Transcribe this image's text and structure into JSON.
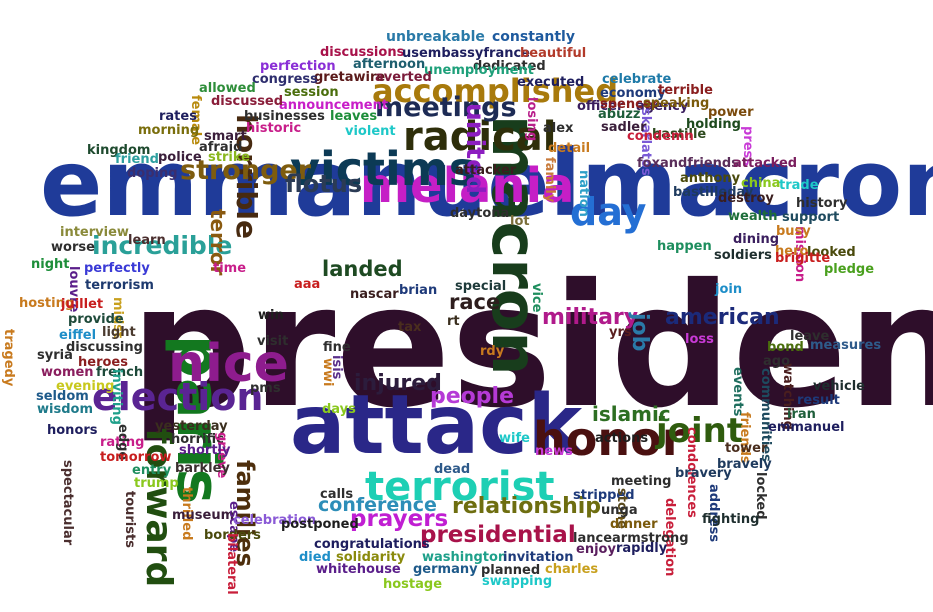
{
  "words": [
    {
      "t": "president",
      "c": "#2e0e2a"
    },
    {
      "t": "emmanuelmacron",
      "c": "#1f3b99"
    },
    {
      "t": "attack",
      "c": "#2a2788"
    },
    {
      "t": "macron",
      "c": "#183d1c"
    },
    {
      "t": "melania",
      "c": "#c51fc6"
    },
    {
      "t": "paris",
      "c": "#13781f"
    },
    {
      "t": "nice",
      "c": "#8e1c8e"
    },
    {
      "t": "victims",
      "c": "#0c3a55"
    },
    {
      "t": "day",
      "c": "#246fd4"
    },
    {
      "t": "honor",
      "c": "#4a1010"
    },
    {
      "t": "terrorist",
      "c": "#1dcfb4"
    },
    {
      "t": "radical",
      "c": "#2e2e0a"
    },
    {
      "t": "election",
      "c": "#5a2493"
    },
    {
      "t": "accomplished",
      "c": "#a87a0c"
    },
    {
      "t": "forward",
      "c": "#214e10"
    },
    {
      "t": "joint",
      "c": "#2f5c0e"
    },
    {
      "t": "meetings",
      "c": "#1d2b55"
    },
    {
      "t": "horrible",
      "c": "#472a10"
    },
    {
      "t": "united",
      "c": "#8c1ec0"
    },
    {
      "t": "stronger",
      "c": "#7e5c0e"
    },
    {
      "t": "flotus",
      "c": "#2b3b55"
    },
    {
      "t": "presidential",
      "c": "#a8124a"
    },
    {
      "t": "families",
      "c": "#4d2e0c"
    },
    {
      "t": "relationship",
      "c": "#6e6e10"
    },
    {
      "t": "people",
      "c": "#b53ad6"
    },
    {
      "t": "incredible",
      "c": "#2aa098"
    },
    {
      "t": "prayers",
      "c": "#c01ed2"
    },
    {
      "t": "injured",
      "c": "#2c1c3c"
    },
    {
      "t": "american",
      "c": "#1b2a7a"
    },
    {
      "t": "islamic",
      "c": "#2d6e22"
    },
    {
      "t": "military",
      "c": "#b01a8b"
    },
    {
      "t": "landed",
      "c": "#1e4a22"
    },
    {
      "t": "conference",
      "c": "#2d8eb8"
    },
    {
      "t": "terror",
      "c": "#8a5a10"
    },
    {
      "t": "race",
      "c": "#2e1e1e"
    },
    {
      "t": "job",
      "c": "#2a7aa8"
    },
    {
      "t": "unbreakable",
      "c": "#2a7aa8"
    },
    {
      "t": "constantly",
      "c": "#1e5a9e"
    },
    {
      "t": "discussions",
      "c": "#a8124a"
    },
    {
      "t": "usembassyfrance",
      "c": "#1e1e5e"
    },
    {
      "t": "beautiful",
      "c": "#b23a2a"
    },
    {
      "t": "perfection",
      "c": "#8a2ed6"
    },
    {
      "t": "afternoon",
      "c": "#1e5e6e"
    },
    {
      "t": "dedicated",
      "c": "#2e2e2e"
    },
    {
      "t": "gretawire",
      "c": "#5a1a1a"
    },
    {
      "t": "unemployment",
      "c": "#1ea07a"
    },
    {
      "t": "congress",
      "c": "#2e2e6e"
    },
    {
      "t": "averted",
      "c": "#7a1a3a"
    },
    {
      "t": "executed",
      "c": "#1e1e5e"
    },
    {
      "t": "celebrate",
      "c": "#1e7aa8"
    },
    {
      "t": "allowed",
      "c": "#2e8e3a"
    },
    {
      "t": "session",
      "c": "#4a6e0c"
    },
    {
      "t": "economy",
      "c": "#1e3a7a"
    },
    {
      "t": "terrible",
      "c": "#8a1e1e"
    },
    {
      "t": "announcement",
      "c": "#c81ec8"
    },
    {
      "t": "officer",
      "c": "#3a1e5e"
    },
    {
      "t": "agency",
      "c": "#3a1e5e"
    },
    {
      "t": "power",
      "c": "#7a4a0c"
    },
    {
      "t": "female",
      "c": "#b88a0c"
    },
    {
      "t": "discussed",
      "c": "#8a1e3a"
    },
    {
      "t": "losing",
      "c": "#b81e8a"
    },
    {
      "t": "spencer",
      "c": "#8a1e1e"
    },
    {
      "t": "speaking",
      "c": "#7a5a0c"
    },
    {
      "t": "rates",
      "c": "#1e1e5e"
    },
    {
      "t": "leaves",
      "c": "#1e8e3a"
    },
    {
      "t": "abuzz",
      "c": "#1e5e3a"
    },
    {
      "t": "bastille",
      "c": "#2e4a1e"
    },
    {
      "t": "businesses",
      "c": "#2e2e2e"
    },
    {
      "t": "skarlatos",
      "c": "#7a5ad6"
    },
    {
      "t": "morning",
      "c": "#7a6e0c"
    },
    {
      "t": "historic",
      "c": "#c81e8a"
    },
    {
      "t": "violent",
      "c": "#1ec8c8"
    },
    {
      "t": "alex",
      "c": "#2e2e2e"
    },
    {
      "t": "sadler",
      "c": "#3a1e3a"
    },
    {
      "t": "holding",
      "c": "#1e4a1e"
    },
    {
      "t": "smart",
      "c": "#3a1e3a"
    },
    {
      "t": "condemn",
      "c": "#c81e3a"
    },
    {
      "t": "press",
      "c": "#c83ad6"
    },
    {
      "t": "kingdom",
      "c": "#1e4a2e"
    },
    {
      "t": "afraid",
      "c": "#2e2e2e"
    },
    {
      "t": "foxandfriends",
      "c": "#5a2e5a"
    },
    {
      "t": "friend",
      "c": "#2ea0a0"
    },
    {
      "t": "police",
      "c": "#3a1e3a"
    },
    {
      "t": "strike",
      "c": "#8ab81e"
    },
    {
      "t": "detail",
      "c": "#c87a1e"
    },
    {
      "t": "attacked",
      "c": "#7a1e5e"
    },
    {
      "t": "anthony",
      "c": "#4a4a0c"
    },
    {
      "t": "doping",
      "c": "#3a2e6e"
    },
    {
      "t": "attacker",
      "c": "#3a1e1e"
    },
    {
      "t": "family",
      "c": "#c87a3a"
    },
    {
      "t": "nation",
      "c": "#2ea0c8"
    },
    {
      "t": "bastilleday",
      "c": "#1e3a5e"
    },
    {
      "t": "china",
      "c": "#8ac81e"
    },
    {
      "t": "trade",
      "c": "#1ec8c8"
    },
    {
      "t": "destroy",
      "c": "#3a1e1e"
    },
    {
      "t": "history",
      "c": "#2e2e2e"
    },
    {
      "t": "wealth",
      "c": "#1e6e3a"
    },
    {
      "t": "support",
      "c": "#1e4a5e"
    },
    {
      "t": "mission",
      "c": "#c81e8a"
    },
    {
      "t": "busy",
      "c": "#c87a1e"
    },
    {
      "t": "daytona",
      "c": "#2e2e2e"
    },
    {
      "t": "interview",
      "c": "#8a8a3a"
    },
    {
      "t": "lot",
      "c": "#7a6e3a"
    },
    {
      "t": "happen",
      "c": "#1e8e5e"
    },
    {
      "t": "dining",
      "c": "#3a1e5e"
    },
    {
      "t": "hero",
      "c": "#c87a1e"
    },
    {
      "t": "looked",
      "c": "#4a4a0c"
    },
    {
      "t": "worse",
      "c": "#2e2e2e"
    },
    {
      "t": "learn",
      "c": "#4a2e2e"
    },
    {
      "t": "soldiers",
      "c": "#1e2e2e"
    },
    {
      "t": "brigitte",
      "c": "#c81e1e"
    },
    {
      "t": "night",
      "c": "#1e8e3a"
    },
    {
      "t": "louvre",
      "c": "#5a1e8a"
    },
    {
      "t": "perfectly",
      "c": "#3a3ad6"
    },
    {
      "t": "time",
      "c": "#c81e8a"
    },
    {
      "t": "pledge",
      "c": "#4aa01e"
    },
    {
      "t": "terrorism",
      "c": "#1e3a6e"
    },
    {
      "t": "aaa",
      "c": "#c81e1e"
    },
    {
      "t": "nascar",
      "c": "#3a1e1e"
    },
    {
      "t": "brian",
      "c": "#1e3a7a"
    },
    {
      "t": "join",
      "c": "#1e8ec8"
    },
    {
      "t": "hosting",
      "c": "#c87a1e"
    },
    {
      "t": "juillet",
      "c": "#c81e1e"
    },
    {
      "t": "midst",
      "c": "#c8a01e"
    },
    {
      "t": "special",
      "c": "#1e3a3a"
    },
    {
      "t": "vice",
      "c": "#1e8e5e"
    },
    {
      "t": "leave",
      "c": "#2e2e2e"
    },
    {
      "t": "tragedy",
      "c": "#c87a1e"
    },
    {
      "t": "provide",
      "c": "#1e4a3a"
    },
    {
      "t": "win",
      "c": "#1e1e1e"
    },
    {
      "t": "tax",
      "c": "#4a2e1e"
    },
    {
      "t": "rt",
      "c": "#3a2e1e"
    },
    {
      "t": "yrs",
      "c": "#5a1e1e"
    },
    {
      "t": "measures",
      "c": "#2e5a8a"
    },
    {
      "t": "eiffel",
      "c": "#1e8ec8"
    },
    {
      "t": "light",
      "c": "#4a3a2e"
    },
    {
      "t": "loss",
      "c": "#c83ad6"
    },
    {
      "t": "bond",
      "c": "#4a6e0c"
    },
    {
      "t": "syria",
      "c": "#2e2e2e"
    },
    {
      "t": "discussing",
      "c": "#2e2e2e"
    },
    {
      "t": "visit",
      "c": "#2e2e2e"
    },
    {
      "t": "ago",
      "c": "#2e2e2e"
    },
    {
      "t": "heroes",
      "c": "#8a1e1e"
    },
    {
      "t": "fine",
      "c": "#2e2e2e"
    },
    {
      "t": "rdy",
      "c": "#c87a1e"
    },
    {
      "t": "women",
      "c": "#8a1e5e"
    },
    {
      "t": "french",
      "c": "#1e4a3a"
    },
    {
      "t": "evening",
      "c": "#c8c81e"
    },
    {
      "t": "wwi",
      "c": "#c87a1e"
    },
    {
      "t": "isis",
      "c": "#5a2e8a"
    },
    {
      "t": "inviting",
      "c": "#1ea08a"
    },
    {
      "t": "pms",
      "c": "#2e2e2e"
    },
    {
      "t": "events",
      "c": "#1e6e5e"
    },
    {
      "t": "communities",
      "c": "#1e4a5e"
    },
    {
      "t": "watching",
      "c": "#4a1e1e"
    },
    {
      "t": "vehicle",
      "c": "#1e2e2e"
    },
    {
      "t": "seldom",
      "c": "#1e5a8a"
    },
    {
      "t": "days",
      "c": "#8ac81e"
    },
    {
      "t": "result",
      "c": "#1e3a7a"
    },
    {
      "t": "wisdom",
      "c": "#1e7a8a"
    },
    {
      "t": "iran",
      "c": "#1e5e3a"
    },
    {
      "t": "honors",
      "c": "#1e1e5e"
    },
    {
      "t": "yesterday",
      "c": "#3a2e1e"
    },
    {
      "t": "friends",
      "c": "#c87a1e"
    },
    {
      "t": "rating",
      "c": "#c81e8a"
    },
    {
      "t": "edge",
      "c": "#2e2e2e"
    },
    {
      "t": "horrific",
      "c": "#2e2e2e"
    },
    {
      "t": "grieve",
      "c": "#c81e8a"
    },
    {
      "t": "wife",
      "c": "#1ec8c8"
    },
    {
      "t": "actions",
      "c": "#1e1e1e"
    },
    {
      "t": "condolences",
      "c": "#c81e3a"
    },
    {
      "t": "emmanuel",
      "c": "#1e1e5e"
    },
    {
      "t": "tomorrow",
      "c": "#c81e1e"
    },
    {
      "t": "shortly",
      "c": "#5a1e8a"
    },
    {
      "t": "news",
      "c": "#c83ad6"
    },
    {
      "t": "tower",
      "c": "#4a2e1e"
    },
    {
      "t": "bravely",
      "c": "#1e3a5e"
    },
    {
      "t": "spectacular",
      "c": "#4a2e2e"
    },
    {
      "t": "entry",
      "c": "#1e8e5e"
    },
    {
      "t": "barkley",
      "c": "#3a2e2e"
    },
    {
      "t": "trump",
      "c": "#8ac81e"
    },
    {
      "t": "dead",
      "c": "#2e5a8a"
    },
    {
      "t": "meeting",
      "c": "#2e2e2e"
    },
    {
      "t": "bravery",
      "c": "#1e3a5e"
    },
    {
      "t": "tourists",
      "c": "#4a2e2e"
    },
    {
      "t": "thrilled",
      "c": "#c87a1e"
    },
    {
      "t": "calls",
      "c": "#2e2e2e"
    },
    {
      "t": "stripped",
      "c": "#1e3a7a"
    },
    {
      "t": "stone",
      "c": "#5a4a1e"
    },
    {
      "t": "address",
      "c": "#1e3a7a"
    },
    {
      "t": "locked",
      "c": "#2e2e2e"
    },
    {
      "t": "museum",
      "c": "#3a1e3a"
    },
    {
      "t": "escape",
      "c": "#5a1e8a"
    },
    {
      "t": "unga",
      "c": "#2e2e2e"
    },
    {
      "t": "delegation",
      "c": "#c81e3a"
    },
    {
      "t": "celebration",
      "c": "#8a5ad6"
    },
    {
      "t": "postponed",
      "c": "#1e1e1e"
    },
    {
      "t": "dinner",
      "c": "#7a5a0c"
    },
    {
      "t": "fighting",
      "c": "#1e2e2e"
    },
    {
      "t": "borders",
      "c": "#4a4a0c"
    },
    {
      "t": "congratulations",
      "c": "#1e1e5e"
    },
    {
      "t": "lancearmstrong",
      "c": "#2e2e2e"
    },
    {
      "t": "bilateral",
      "c": "#c81e3a"
    },
    {
      "t": "died",
      "c": "#1e8ec8"
    },
    {
      "t": "solidarity",
      "c": "#8a8a0c"
    },
    {
      "t": "enjoy",
      "c": "#5a1e5e"
    },
    {
      "t": "rapidly",
      "c": "#1e1e5e"
    },
    {
      "t": "washington",
      "c": "#1ea08a"
    },
    {
      "t": "invitation",
      "c": "#1e3a7a"
    },
    {
      "t": "whitehouse",
      "c": "#5a1e8a"
    },
    {
      "t": "germany",
      "c": "#1e5a8a"
    },
    {
      "t": "planned",
      "c": "#2e2e2e"
    },
    {
      "t": "charles",
      "c": "#c8a01e"
    },
    {
      "t": "hostage",
      "c": "#8ac81e"
    },
    {
      "t": "swapping",
      "c": "#1ec8c8"
    }
  ]
}
